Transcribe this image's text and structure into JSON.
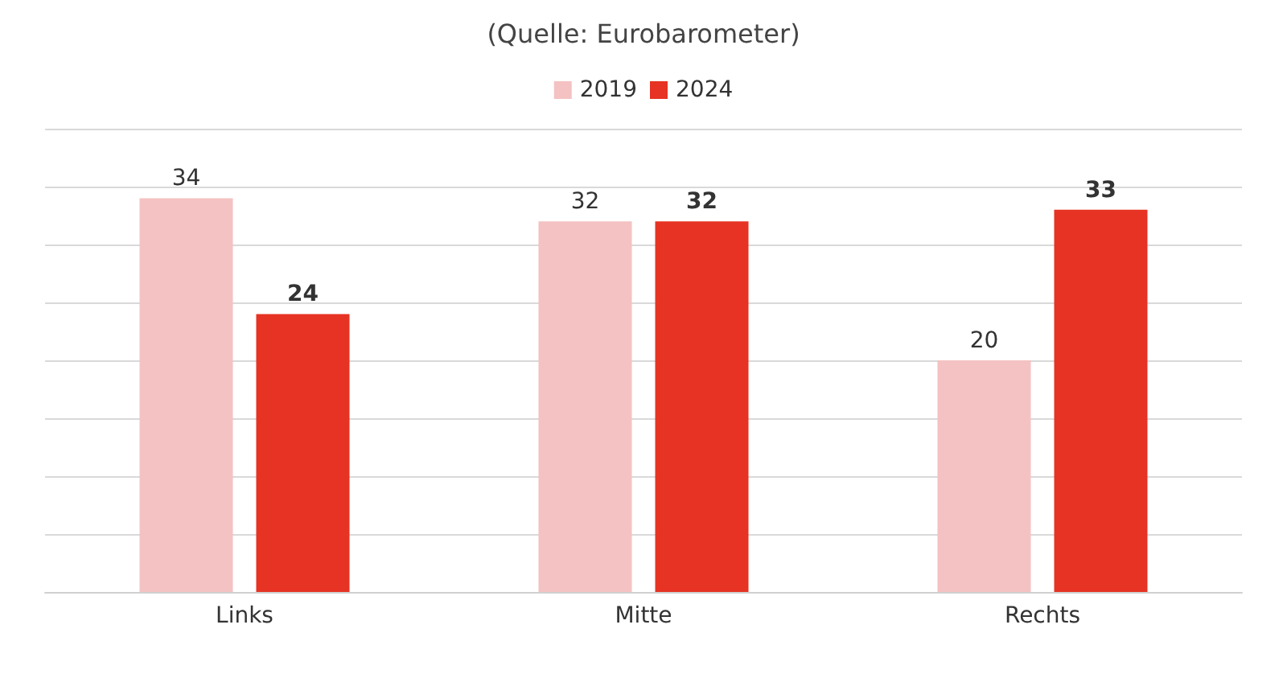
{
  "chart_data": {
    "type": "bar",
    "title": "(Quelle: Eurobarometer)",
    "categories": [
      "Links",
      "Mitte",
      "Rechts"
    ],
    "series": [
      {
        "name": "2019",
        "color": "#f4c2c2",
        "values": [
          34,
          32,
          20
        ]
      },
      {
        "name": "2024",
        "color": "#e63323",
        "values": [
          24,
          32,
          33
        ]
      }
    ],
    "ylim": [
      0,
      40
    ],
    "yticks": [
      {
        "value": 0,
        "label": null
      },
      {
        "value": 5,
        "label": null
      },
      {
        "value": 10,
        "label": null
      },
      {
        "value": 15,
        "label": null
      },
      {
        "value": 20,
        "label": null
      },
      {
        "value": 25,
        "label": null
      },
      {
        "value": 30,
        "label": null
      },
      {
        "value": 35,
        "label": null
      },
      {
        "value": 40,
        "label": null
      }
    ],
    "grid": "y",
    "legend": "top",
    "tick_labels": "x",
    "data_labels": true
  }
}
